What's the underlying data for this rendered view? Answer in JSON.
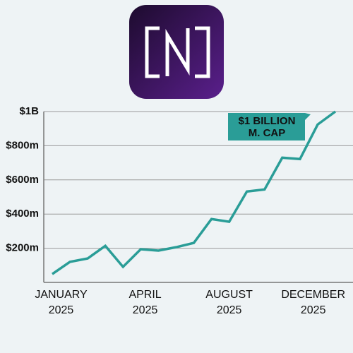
{
  "chart_data": {
    "type": "line",
    "series": [
      {
        "color": "#2a9d97",
        "values": [
          49,
          120,
          140,
          214,
          91,
          194,
          186,
          206,
          231,
          371,
          355,
          532,
          544,
          730,
          722,
          924,
          1000
        ]
      }
    ],
    "x": [
      0,
      1,
      2,
      3,
      4,
      5,
      6,
      7,
      8,
      9,
      10,
      11,
      12,
      13,
      14,
      15,
      16
    ],
    "xlim": [
      0,
      16
    ],
    "xticks": [
      {
        "value": 0.5,
        "label": [
          "JANUARY",
          "2025"
        ]
      },
      {
        "value": 5.25,
        "label": [
          "APRIL",
          "2025"
        ]
      },
      {
        "value": 10,
        "label": [
          "AUGUST",
          "2025"
        ]
      },
      {
        "value": 14.75,
        "label": [
          "DECEMBER",
          "2025"
        ]
      }
    ],
    "ylim": [
      0,
      1000
    ],
    "yticks": [
      {
        "value": 200,
        "label": "$200m"
      },
      {
        "value": 400,
        "label": "$400m"
      },
      {
        "value": 600,
        "label": "$600m"
      },
      {
        "value": 800,
        "label": "$800m"
      },
      {
        "value": 1000,
        "label": "$1B"
      }
    ],
    "grid": true,
    "annotation": {
      "lines": [
        "$1 BILLION",
        "M. CAP"
      ],
      "color": "#2a9d97"
    }
  }
}
